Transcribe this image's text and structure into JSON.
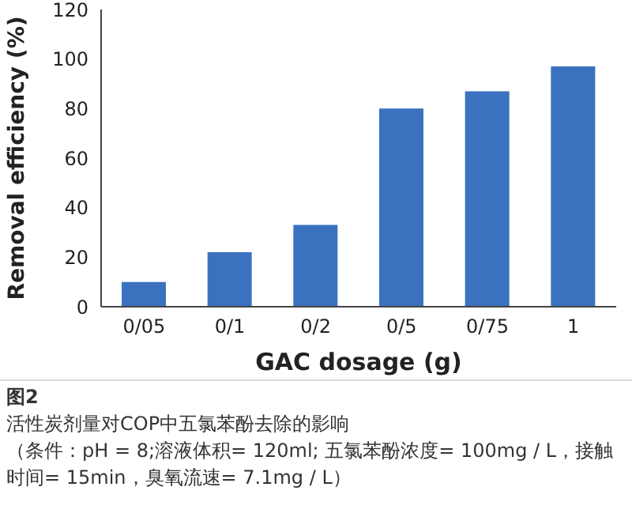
{
  "chart_data": {
    "type": "bar",
    "xlabel": "GAC dosage (g)",
    "ylabel": "Removal efficiency (%)",
    "categories": [
      "0/05",
      "0/1",
      "0/2",
      "0/5",
      "0/75",
      "1"
    ],
    "values": [
      10,
      22,
      33,
      80,
      87,
      97
    ],
    "color": "#3a72c0",
    "ylim": [
      0,
      120
    ],
    "yticks": [
      0,
      20,
      40,
      60,
      80,
      100,
      120
    ],
    "grid": false,
    "annotations": [
      "图2",
      "活性炭剂量对COP中五氯苯酚去除的影响",
      "（条件：pH = 8;溶液体积= 120ml; 五氯苯酚浓度= 100mg / L，接触时间= 15min，臭氧流速= 7.1mg / L）"
    ]
  }
}
